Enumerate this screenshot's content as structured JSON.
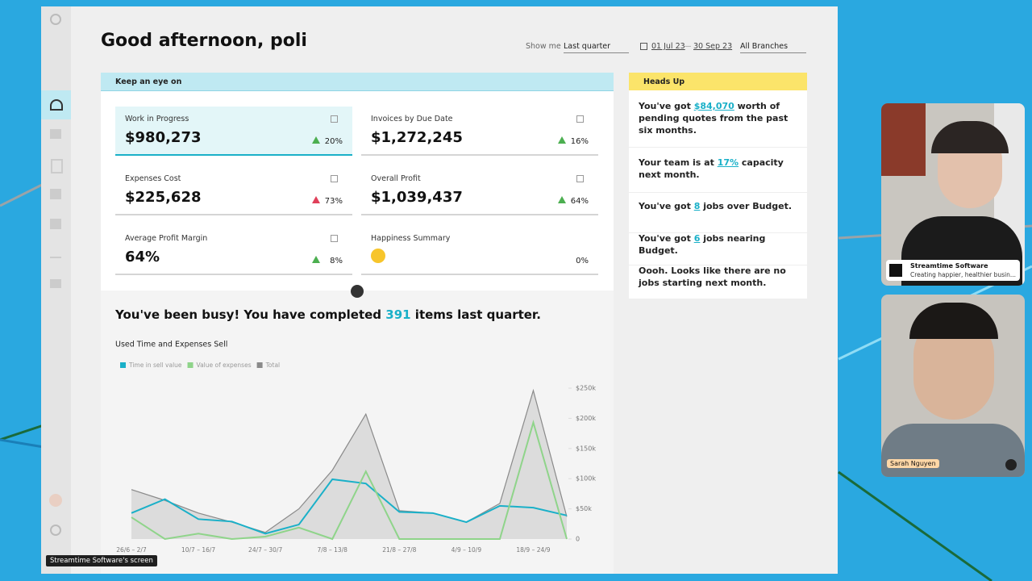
{
  "header": {
    "greeting": "Good afternoon, poli",
    "show_me_label": "Show me",
    "period": "Last quarter",
    "date_from": "01 Jul 23",
    "date_separator": "—",
    "date_to": "30 Sep 23",
    "branch": "All Branches"
  },
  "keep_an_eye_on": {
    "title": "Keep an eye on",
    "cards": [
      {
        "label": "Work in Progress",
        "value": "$980,273",
        "change": "20%",
        "icon_color": "#4caf50"
      },
      {
        "label": "Invoices by Due Date",
        "value": "$1,272,245",
        "change": "16%",
        "icon_color": "#4caf50"
      },
      {
        "label": "Expenses Cost",
        "value": "$225,628",
        "change": "73%",
        "icon_color": "#e0405a"
      },
      {
        "label": "Overall Profit",
        "value": "$1,039,437",
        "change": "64%",
        "icon_color": "#4caf50"
      },
      {
        "label": "Average Profit Margin",
        "value": "64%",
        "change": "8%",
        "icon_color": "#4caf50"
      },
      {
        "label": "Happiness Summary",
        "change": "0%"
      }
    ]
  },
  "heads_up": {
    "title": "Heads Up",
    "items": [
      {
        "before": "You've got ",
        "link": "$84,070",
        "after": " worth of pending quotes from the past six months."
      },
      {
        "before": "Your team is at ",
        "link": "17%",
        "after": " capacity next month."
      },
      {
        "before": "You've got ",
        "link": "8",
        "after": " jobs over Budget."
      },
      {
        "before": "You've got ",
        "link": "6",
        "after": " jobs nearing Budget."
      },
      {
        "before": "Oooh. Looks like there are no jobs starting next month."
      }
    ]
  },
  "summary": {
    "before": "You've been busy! You have completed ",
    "count": "391",
    "after": " items last quarter."
  },
  "chart_data": {
    "type": "line",
    "title": "Used Time and Expenses Sell",
    "categories": [
      "26/6 – 2/7",
      null,
      "10/7 – 16/7",
      null,
      "24/7 – 30/7",
      null,
      "7/8 – 13/8",
      null,
      "21/8 – 27/8",
      null,
      "4/9 – 10/9",
      null,
      "18/9 – 24/9",
      null
    ],
    "series": [
      {
        "name": "Time in sell value",
        "color": "#1ab0c8",
        "values": [
          43000,
          66000,
          33000,
          29000,
          9000,
          24000,
          99000,
          92000,
          45000,
          43000,
          28000,
          55000,
          52000,
          39000
        ]
      },
      {
        "name": "Value of expenses",
        "color": "#8fd48a",
        "values": [
          36000,
          0,
          9000,
          0,
          4000,
          19000,
          0,
          112000,
          0,
          0,
          0,
          0,
          193000,
          0
        ]
      },
      {
        "name": "Total",
        "color": "#8a8a8a",
        "area": true,
        "values": [
          82000,
          64000,
          43000,
          28000,
          11000,
          50000,
          114000,
          207000,
          47000,
          43000,
          28000,
          59000,
          246000,
          37000
        ]
      }
    ],
    "ylim": [
      0,
      250000
    ],
    "yticks": [
      0,
      {
        "value": 50000,
        "label": "$50k"
      },
      {
        "value": 100000,
        "label": "$100k"
      },
      {
        "value": 150000,
        "label": "$150k"
      },
      {
        "value": 200000,
        "label": "$200k"
      },
      {
        "value": 250000,
        "label": "$250k"
      }
    ],
    "grid": false
  },
  "participants": [
    {
      "name": "Streamtime Software",
      "subtitle": "Creating happier, healthier busin..."
    },
    {
      "name": "Sarah Nguyen"
    }
  ],
  "screen_label": "Streamtime Software's screen"
}
